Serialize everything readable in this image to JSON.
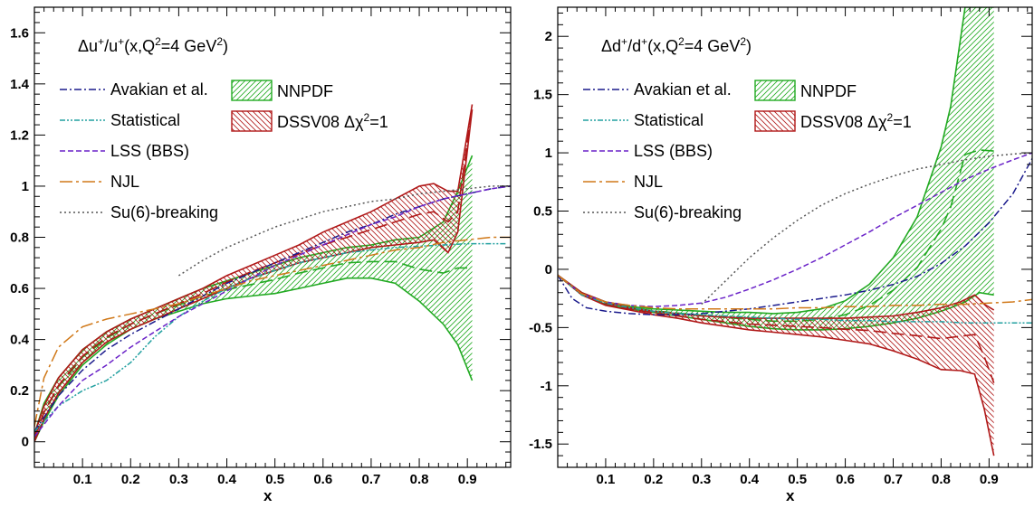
{
  "chart_data": [
    {
      "type": "line",
      "title": "Δu+/u+(x,Q²=4 GeV²)",
      "xlabel": "x",
      "ylabel": "",
      "xlim": [
        0.0,
        0.99
      ],
      "ylim": [
        -0.1,
        1.7
      ],
      "xticks": [
        "0.1",
        "0.2",
        "0.3",
        "0.4",
        "0.5",
        "0.6",
        "0.7",
        "0.8",
        "0.9"
      ],
      "yticks": [
        "0",
        "0.2",
        "0.4",
        "0.6",
        "0.8",
        "1",
        "1.2",
        "1.4",
        "1.6"
      ],
      "legend": {
        "lines": [
          "Avakian et al.",
          "Statistical",
          "LSS (BBS)",
          "NJL",
          "Su(6)-breaking"
        ],
        "bands": [
          "NNPDF",
          "DSSV08 Δχ²=1"
        ]
      },
      "bands": [
        {
          "name": "NNPDF",
          "color": "#22aa22",
          "x": [
            0.0,
            0.02,
            0.05,
            0.1,
            0.15,
            0.2,
            0.25,
            0.3,
            0.35,
            0.4,
            0.45,
            0.5,
            0.55,
            0.6,
            0.65,
            0.7,
            0.75,
            0.8,
            0.85,
            0.88,
            0.91
          ],
          "upper": [
            0.03,
            0.15,
            0.25,
            0.36,
            0.43,
            0.48,
            0.52,
            0.56,
            0.6,
            0.63,
            0.66,
            0.69,
            0.72,
            0.74,
            0.76,
            0.77,
            0.79,
            0.8,
            0.86,
            0.98,
            1.12
          ],
          "lower": [
            0.0,
            0.08,
            0.18,
            0.3,
            0.38,
            0.44,
            0.48,
            0.51,
            0.54,
            0.56,
            0.57,
            0.58,
            0.6,
            0.62,
            0.64,
            0.64,
            0.62,
            0.55,
            0.46,
            0.38,
            0.24
          ]
        },
        {
          "name": "DSSV08 Δχ²=1",
          "color": "#b01818",
          "x": [
            0.0,
            0.02,
            0.05,
            0.1,
            0.15,
            0.2,
            0.25,
            0.3,
            0.35,
            0.4,
            0.45,
            0.5,
            0.55,
            0.6,
            0.65,
            0.7,
            0.75,
            0.8,
            0.83,
            0.86,
            0.88,
            0.91
          ],
          "upper": [
            0.03,
            0.14,
            0.25,
            0.36,
            0.43,
            0.48,
            0.52,
            0.56,
            0.6,
            0.65,
            0.69,
            0.73,
            0.77,
            0.82,
            0.86,
            0.9,
            0.95,
            1.0,
            1.01,
            0.98,
            0.98,
            1.32
          ],
          "lower": [
            0.0,
            0.09,
            0.19,
            0.31,
            0.39,
            0.44,
            0.48,
            0.52,
            0.56,
            0.6,
            0.64,
            0.67,
            0.7,
            0.72,
            0.74,
            0.76,
            0.77,
            0.78,
            0.79,
            0.74,
            0.82,
            1.3
          ]
        }
      ],
      "series": [
        {
          "name": "Avakian et al.",
          "color": "#1a1a8c",
          "dash": "8,3,2,3",
          "x": [
            0.0,
            0.05,
            0.1,
            0.15,
            0.2,
            0.25,
            0.3,
            0.35,
            0.4,
            0.45,
            0.5,
            0.55,
            0.6,
            0.65,
            0.7,
            0.75,
            0.8,
            0.85,
            0.9,
            0.95,
            0.99
          ],
          "y": [
            0.04,
            0.18,
            0.28,
            0.36,
            0.42,
            0.47,
            0.52,
            0.57,
            0.62,
            0.66,
            0.7,
            0.74,
            0.78,
            0.82,
            0.85,
            0.89,
            0.92,
            0.95,
            0.97,
            0.99,
            1.0
          ]
        },
        {
          "name": "Statistical",
          "color": "#22a0a0",
          "dash": "6,2,2,2,2,2",
          "x": [
            0.0,
            0.05,
            0.1,
            0.15,
            0.2,
            0.25,
            0.3,
            0.35,
            0.4,
            0.45,
            0.5,
            0.55,
            0.6,
            0.65,
            0.7,
            0.75,
            0.8,
            0.85,
            0.9,
            0.95,
            0.98
          ],
          "y": [
            0.04,
            0.14,
            0.2,
            0.24,
            0.31,
            0.41,
            0.49,
            0.55,
            0.6,
            0.64,
            0.67,
            0.7,
            0.72,
            0.74,
            0.75,
            0.76,
            0.765,
            0.77,
            0.775,
            0.775,
            0.775
          ]
        },
        {
          "name": "LSS (BBS)",
          "color": "#6a22c8",
          "dash": "6,3",
          "x": [
            0.0,
            0.05,
            0.1,
            0.15,
            0.2,
            0.25,
            0.3,
            0.35,
            0.4,
            0.45,
            0.5,
            0.55,
            0.6,
            0.65,
            0.7,
            0.75,
            0.8,
            0.85,
            0.9,
            0.95,
            0.99
          ],
          "y": [
            0.02,
            0.14,
            0.24,
            0.3,
            0.37,
            0.43,
            0.49,
            0.54,
            0.59,
            0.64,
            0.69,
            0.73,
            0.77,
            0.81,
            0.85,
            0.88,
            0.92,
            0.95,
            0.97,
            0.99,
            1.0
          ]
        },
        {
          "name": "NJL",
          "color": "#d07818",
          "dash": "14,4,3,4",
          "x": [
            0.0,
            0.02,
            0.05,
            0.1,
            0.15,
            0.2,
            0.25,
            0.3,
            0.35,
            0.4,
            0.45,
            0.5,
            0.55,
            0.6,
            0.65,
            0.7,
            0.75,
            0.8,
            0.85,
            0.9,
            0.95,
            0.99
          ],
          "y": [
            0.06,
            0.25,
            0.37,
            0.45,
            0.48,
            0.5,
            0.52,
            0.54,
            0.57,
            0.6,
            0.63,
            0.65,
            0.67,
            0.69,
            0.71,
            0.73,
            0.75,
            0.76,
            0.78,
            0.79,
            0.8,
            0.8
          ]
        },
        {
          "name": "Su(6)-breaking",
          "color": "#555555",
          "dash": "2,3",
          "x": [
            0.3,
            0.35,
            0.4,
            0.45,
            0.5,
            0.55,
            0.6,
            0.65,
            0.7,
            0.75,
            0.8,
            0.85,
            0.9,
            0.95,
            0.99
          ],
          "y": [
            0.65,
            0.71,
            0.76,
            0.8,
            0.84,
            0.87,
            0.9,
            0.92,
            0.94,
            0.95,
            0.97,
            0.98,
            0.99,
            1.0,
            1.0
          ]
        }
      ]
    },
    {
      "type": "line",
      "title": "Δd+/d+(x,Q²=4 GeV²)",
      "xlabel": "x",
      "ylabel": "",
      "xlim": [
        0.0,
        0.99
      ],
      "ylim": [
        -1.7,
        2.25
      ],
      "xticks": [
        "0.1",
        "0.2",
        "0.3",
        "0.4",
        "0.5",
        "0.6",
        "0.7",
        "0.8",
        "0.9"
      ],
      "yticks": [
        "-1.5",
        "-1",
        "-0.5",
        "0",
        "0.5",
        "1",
        "1.5",
        "2"
      ],
      "legend": {
        "lines": [
          "Avakian et al.",
          "Statistical",
          "LSS (BBS)",
          "NJL",
          "Su(6)-breaking"
        ],
        "bands": [
          "NNPDF",
          "DSSV08 Δχ²=1"
        ]
      },
      "bands": [
        {
          "name": "NNPDF",
          "color": "#22aa22",
          "x": [
            0.0,
            0.05,
            0.1,
            0.15,
            0.2,
            0.25,
            0.3,
            0.35,
            0.4,
            0.45,
            0.5,
            0.55,
            0.6,
            0.65,
            0.7,
            0.75,
            0.8,
            0.82,
            0.85,
            0.88,
            0.91
          ],
          "upper": [
            -0.05,
            -0.2,
            -0.28,
            -0.32,
            -0.34,
            -0.35,
            -0.36,
            -0.37,
            -0.37,
            -0.38,
            -0.37,
            -0.34,
            -0.27,
            -0.13,
            0.1,
            0.45,
            1.05,
            1.4,
            2.25,
            2.25,
            2.25
          ],
          "lower": [
            -0.05,
            -0.22,
            -0.3,
            -0.34,
            -0.37,
            -0.4,
            -0.43,
            -0.46,
            -0.49,
            -0.51,
            -0.52,
            -0.52,
            -0.51,
            -0.49,
            -0.46,
            -0.42,
            -0.36,
            -0.33,
            -0.28,
            -0.2,
            -0.22
          ]
        },
        {
          "name": "DSSV08 Δχ²=1",
          "color": "#b01818",
          "x": [
            0.0,
            0.05,
            0.1,
            0.15,
            0.2,
            0.25,
            0.3,
            0.35,
            0.4,
            0.45,
            0.5,
            0.55,
            0.6,
            0.65,
            0.7,
            0.75,
            0.8,
            0.84,
            0.87,
            0.89,
            0.91
          ],
          "upper": [
            -0.05,
            -0.2,
            -0.28,
            -0.33,
            -0.36,
            -0.38,
            -0.4,
            -0.41,
            -0.42,
            -0.42,
            -0.42,
            -0.42,
            -0.42,
            -0.41,
            -0.4,
            -0.37,
            -0.33,
            -0.28,
            -0.22,
            -0.3,
            -0.35
          ],
          "lower": [
            -0.05,
            -0.22,
            -0.31,
            -0.35,
            -0.39,
            -0.42,
            -0.46,
            -0.49,
            -0.52,
            -0.54,
            -0.56,
            -0.58,
            -0.61,
            -0.64,
            -0.7,
            -0.77,
            -0.86,
            -0.87,
            -0.9,
            -1.2,
            -1.6
          ]
        }
      ],
      "series": [
        {
          "name": "Avakian et al.",
          "color": "#1a1a8c",
          "dash": "8,3,2,3",
          "x": [
            0.0,
            0.03,
            0.06,
            0.1,
            0.15,
            0.2,
            0.25,
            0.3,
            0.35,
            0.4,
            0.45,
            0.5,
            0.55,
            0.6,
            0.65,
            0.7,
            0.75,
            0.8,
            0.85,
            0.9,
            0.95,
            0.99
          ],
          "y": [
            -0.05,
            -0.25,
            -0.33,
            -0.36,
            -0.38,
            -0.39,
            -0.39,
            -0.38,
            -0.36,
            -0.34,
            -0.31,
            -0.28,
            -0.25,
            -0.22,
            -0.18,
            -0.13,
            -0.06,
            0.05,
            0.2,
            0.4,
            0.65,
            0.95
          ]
        },
        {
          "name": "Statistical",
          "color": "#22a0a0",
          "dash": "6,2,2,2,2,2",
          "x": [
            0.0,
            0.05,
            0.1,
            0.15,
            0.2,
            0.25,
            0.3,
            0.35,
            0.4,
            0.45,
            0.5,
            0.55,
            0.6,
            0.65,
            0.7,
            0.75,
            0.8,
            0.85,
            0.9,
            0.95,
            0.99
          ],
          "y": [
            -0.05,
            -0.22,
            -0.29,
            -0.33,
            -0.36,
            -0.38,
            -0.39,
            -0.4,
            -0.41,
            -0.42,
            -0.43,
            -0.43,
            -0.44,
            -0.44,
            -0.45,
            -0.45,
            -0.45,
            -0.46,
            -0.46,
            -0.46,
            -0.46
          ]
        },
        {
          "name": "LSS (BBS)",
          "color": "#6a22c8",
          "dash": "6,3",
          "x": [
            0.0,
            0.05,
            0.1,
            0.15,
            0.2,
            0.25,
            0.3,
            0.35,
            0.4,
            0.45,
            0.5,
            0.55,
            0.6,
            0.65,
            0.7,
            0.75,
            0.8,
            0.85,
            0.9,
            0.95,
            0.99
          ],
          "y": [
            -0.05,
            -0.21,
            -0.28,
            -0.31,
            -0.32,
            -0.31,
            -0.29,
            -0.24,
            -0.17,
            -0.09,
            0.0,
            0.1,
            0.21,
            0.32,
            0.44,
            0.55,
            0.66,
            0.77,
            0.86,
            0.94,
            1.0
          ]
        },
        {
          "name": "NJL",
          "color": "#d07818",
          "dash": "14,4,3,4",
          "x": [
            0.0,
            0.05,
            0.1,
            0.15,
            0.2,
            0.25,
            0.3,
            0.35,
            0.4,
            0.45,
            0.5,
            0.55,
            0.6,
            0.65,
            0.7,
            0.75,
            0.8,
            0.85,
            0.9,
            0.95,
            0.99
          ],
          "y": [
            -0.05,
            -0.21,
            -0.28,
            -0.31,
            -0.33,
            -0.34,
            -0.34,
            -0.34,
            -0.34,
            -0.34,
            -0.33,
            -0.33,
            -0.32,
            -0.32,
            -0.31,
            -0.31,
            -0.3,
            -0.3,
            -0.29,
            -0.28,
            -0.26
          ]
        },
        {
          "name": "Su(6)-breaking",
          "color": "#555555",
          "dash": "2,3",
          "x": [
            0.3,
            0.35,
            0.4,
            0.45,
            0.5,
            0.55,
            0.6,
            0.65,
            0.7,
            0.75,
            0.8,
            0.85,
            0.9,
            0.95,
            0.99
          ],
          "y": [
            -0.3,
            -0.1,
            0.1,
            0.27,
            0.42,
            0.55,
            0.65,
            0.73,
            0.8,
            0.86,
            0.9,
            0.94,
            0.97,
            0.99,
            1.0
          ]
        }
      ]
    }
  ]
}
